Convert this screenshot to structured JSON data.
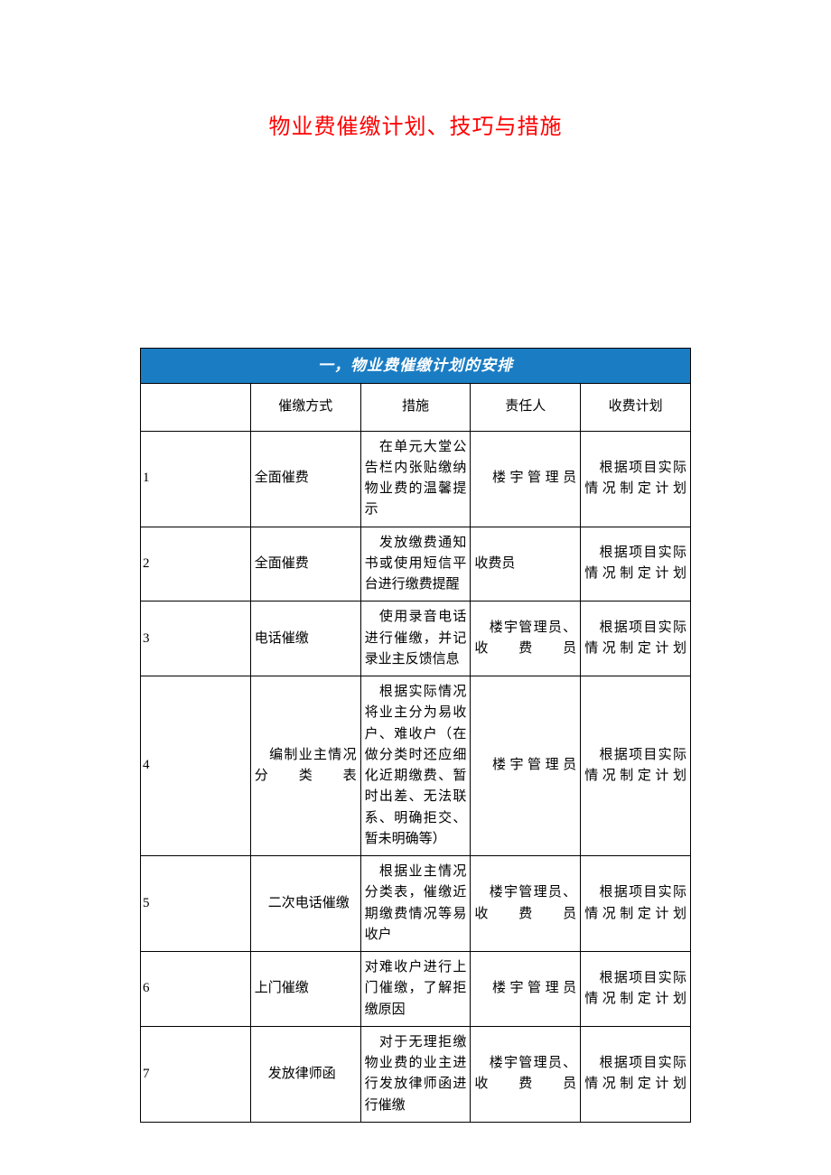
{
  "title": "物业费催缴计划、技巧与措施",
  "section_header": "一，物业费催缴计划的安排",
  "colors": {
    "title_color": "#ff0000",
    "section_bg": "#1a7dc4",
    "section_text": "#ffffff",
    "border": "#000000",
    "page_bg": "#ffffff"
  },
  "columns": [
    "",
    "催缴方式",
    "措施",
    "责任人",
    "收费计划"
  ],
  "rows": [
    {
      "idx": "1",
      "method": "全面催费",
      "action": "　在单元大堂公告栏内张贴缴纳物业费的温馨提示",
      "resp": "　楼宇管理员",
      "plan": "　根据项目实际情况制定计划"
    },
    {
      "idx": "2",
      "method": "全面催费",
      "action": "　发放缴费通知书或使用短信平台进行缴费提醒",
      "resp": "收费员",
      "plan": "　根据项目实际情况制定计划"
    },
    {
      "idx": "3",
      "method": "电话催缴",
      "action": "　使用录音电话进行催缴，并记录业主反馈信息",
      "resp": "　楼宇管理员、收费员",
      "plan": "　根据项目实际情况制定计划"
    },
    {
      "idx": "4",
      "method": "　编制业主情况分类表",
      "action": "　根据实际情况将业主分为易收户、难收户（在做分类时还应细化近期缴费、暂时出差、无法联系、明确拒交、暂未明确等）",
      "resp": "　楼宇管理员",
      "plan": "　根据项目实际情况制定计划"
    },
    {
      "idx": "5",
      "method": "　二次电话催缴",
      "action": "　根据业主情况分类表，催缴近期缴费情况等易收户",
      "resp": "　楼宇管理员、收费员",
      "plan": "　根据项目实际情况制定计划"
    },
    {
      "idx": "6",
      "method": "上门催缴",
      "action": "对难收户进行上门催缴，了解拒缴原因",
      "resp": "　楼宇管理员",
      "plan": "　根据项目实际情况制定计划"
    },
    {
      "idx": "7",
      "method": "　发放律师函",
      "action": "　对于无理拒缴物业费的业主进行发放律师函进行催缴",
      "resp": "　楼宇管理员、收费员",
      "plan": "　根据项目实际情况制定计划"
    }
  ]
}
